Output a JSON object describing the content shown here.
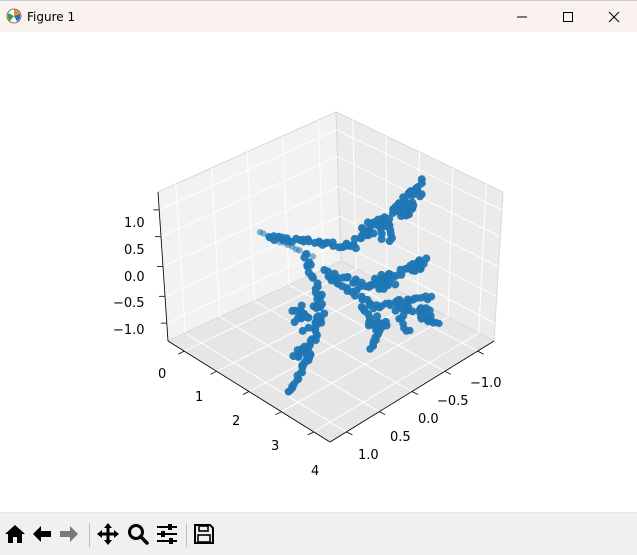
{
  "window": {
    "title": "Figure 1",
    "controls": [
      "minimize",
      "maximize",
      "close"
    ]
  },
  "toolbar": {
    "buttons": [
      {
        "name": "home",
        "icon": "home-icon"
      },
      {
        "name": "back",
        "icon": "arrow-left-icon"
      },
      {
        "name": "forward",
        "icon": "arrow-right-icon"
      },
      {
        "name": "pan",
        "icon": "move-icon"
      },
      {
        "name": "zoom",
        "icon": "magnifier-icon"
      },
      {
        "name": "configure-subplots",
        "icon": "sliders-icon"
      },
      {
        "name": "save",
        "icon": "floppy-disk-icon"
      }
    ]
  },
  "chart_data": {
    "type": "scatter",
    "projection": "3d",
    "title": "",
    "xlabel": "",
    "ylabel": "",
    "zlabel": "",
    "x_ticks": [
      "0",
      "1",
      "2",
      "3",
      "4"
    ],
    "y_ticks": [
      "−1.0",
      "−0.5",
      "0.0",
      "0.5",
      "1.0"
    ],
    "z_ticks": [
      "−1.0",
      "−0.5",
      "0.0",
      "0.5",
      "1.0"
    ],
    "xlim": [
      0,
      4
    ],
    "ylim": [
      -1.2,
      1.2
    ],
    "zlim": [
      -1.2,
      1.2
    ],
    "grid": true,
    "marker_color": "#1f77b4",
    "description_of_points": "branching tree-like point cloud",
    "series": [
      {
        "points_approx": [
          [
            0.0,
            0.0,
            1.0
          ],
          [
            0.3,
            0.0,
            0.6
          ],
          [
            0.6,
            0.05,
            0.3
          ],
          [
            0.9,
            0.1,
            0.1
          ],
          [
            1.2,
            0.15,
            -0.1
          ],
          [
            1.5,
            0.2,
            -0.3
          ],
          [
            1.8,
            0.25,
            -0.5
          ],
          [
            2.1,
            0.3,
            -0.7
          ],
          [
            2.4,
            0.35,
            -0.9
          ],
          [
            2.7,
            0.4,
            -1.0
          ],
          [
            1.0,
            -0.3,
            0.3
          ],
          [
            1.1,
            -0.6,
            0.5
          ],
          [
            1.2,
            -0.9,
            0.7
          ],
          [
            1.4,
            -0.2,
            -0.1
          ],
          [
            1.6,
            -0.5,
            0.1
          ],
          [
            1.8,
            -0.8,
            0.3
          ],
          [
            1.9,
            -0.4,
            -0.4
          ],
          [
            2.1,
            -0.7,
            -0.5
          ],
          [
            2.3,
            -0.95,
            -0.6
          ]
        ]
      }
    ]
  }
}
